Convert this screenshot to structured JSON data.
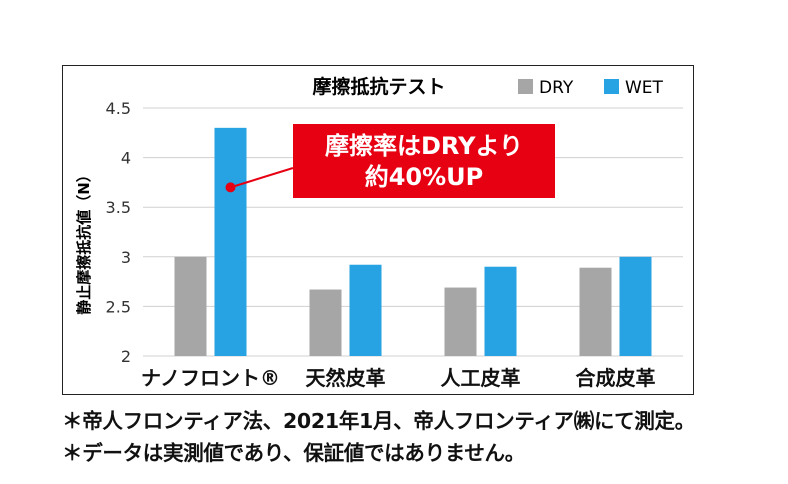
{
  "chart_data": {
    "type": "bar",
    "title": "摩擦抵抗テスト",
    "ylabel": "静止摩擦抵抗値（N）",
    "xlabel": "",
    "ylim": [
      2,
      4.5
    ],
    "yticks": [
      "2",
      "2.5",
      "3",
      "3.5",
      "4",
      "4.5"
    ],
    "ytick_values": [
      2,
      2.5,
      3,
      3.5,
      4,
      4.5
    ],
    "categories": [
      "ナノフロント®",
      "天然皮革",
      "人工皮革",
      "合成皮革"
    ],
    "series": [
      {
        "name": "DRY",
        "values": [
          3.0,
          2.67,
          2.69,
          2.89
        ],
        "color": "#a6a6a6"
      },
      {
        "name": "WET",
        "values": [
          4.3,
          2.92,
          2.9,
          3.0
        ],
        "color": "#27a2e2"
      }
    ],
    "grid": true,
    "legend": "top-right",
    "annotation": {
      "lines": [
        "摩擦率はDRYより",
        "約40%UP"
      ],
      "color": "#e60012",
      "points_to": {
        "category": "ナノフロント®",
        "series": "WET",
        "value": 3.7
      }
    }
  },
  "notes": [
    "＊帝人フロンティア法、2021年1月、帝人フロンティア㈱にて測定。",
    "＊データは実測値であり、保証値ではありません。"
  ]
}
